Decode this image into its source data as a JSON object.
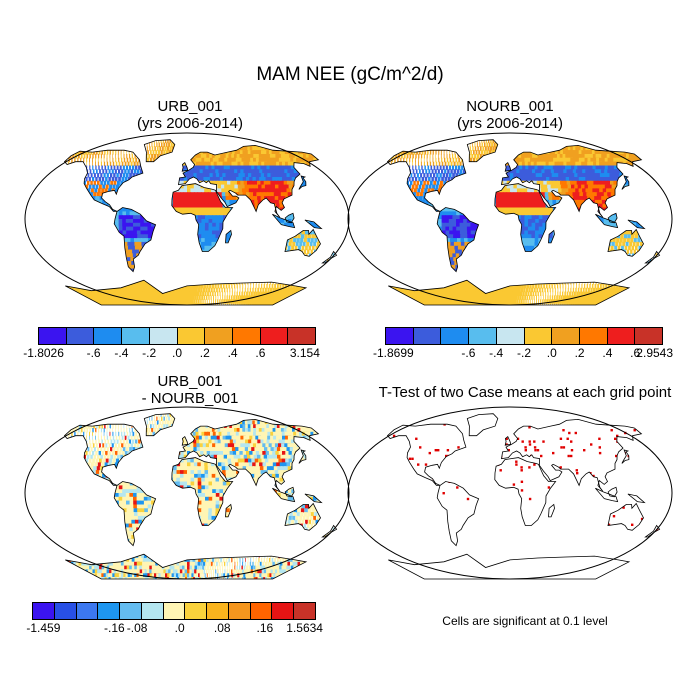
{
  "title": "MAM NEE (gC/m^2/d)",
  "panels": [
    {
      "id": "urb",
      "title_lines": [
        "URB_001",
        "(yrs 2006-2014)"
      ],
      "colorbar": {
        "colors": [
          "#3b14f0",
          "#3c5cdc",
          "#1e8cf0",
          "#58bdee",
          "#c8e6f0",
          "#fac832",
          "#f0a020",
          "#ff7800",
          "#ee1e1e",
          "#c83228"
        ],
        "labels": [
          "-1.8026",
          "-.6",
          "-.4",
          "-.2",
          ".0",
          ".2",
          ".4",
          ".6",
          "3.154"
        ]
      }
    },
    {
      "id": "nourb",
      "title_lines": [
        "NOURB_001",
        "(yrs 2006-2014)"
      ],
      "colorbar": {
        "colors": [
          "#3b14f0",
          "#3c5cdc",
          "#1e8cf0",
          "#58bdee",
          "#c8e6f0",
          "#fac832",
          "#f0a020",
          "#ff7800",
          "#ee1e1e",
          "#c83228"
        ],
        "labels": [
          "-1.8699",
          "-.6",
          "-.4",
          "-.2",
          ".0",
          ".2",
          ".4",
          ".6",
          "2.9543"
        ]
      }
    },
    {
      "id": "diff",
      "title_lines": [
        "URB_001",
        "- NOURB_001"
      ],
      "colorbar": {
        "colors": [
          "#3b14f0",
          "#2850e6",
          "#3c78f0",
          "#1e96f0",
          "#64bcf0",
          "#b4e6f0",
          "#fff5b4",
          "#fad23c",
          "#fab41e",
          "#f5961e",
          "#ff6400",
          "#e61414",
          "#c83228"
        ],
        "labels": [
          "-1.459",
          "-.16",
          "-.08",
          ".0",
          ".08",
          ".16",
          "1.5634"
        ]
      }
    },
    {
      "id": "ttest",
      "title_lines": [
        "T-Test of two Case means at each grid point"
      ],
      "note": "Cells are significant at 0.1 level"
    }
  ]
}
